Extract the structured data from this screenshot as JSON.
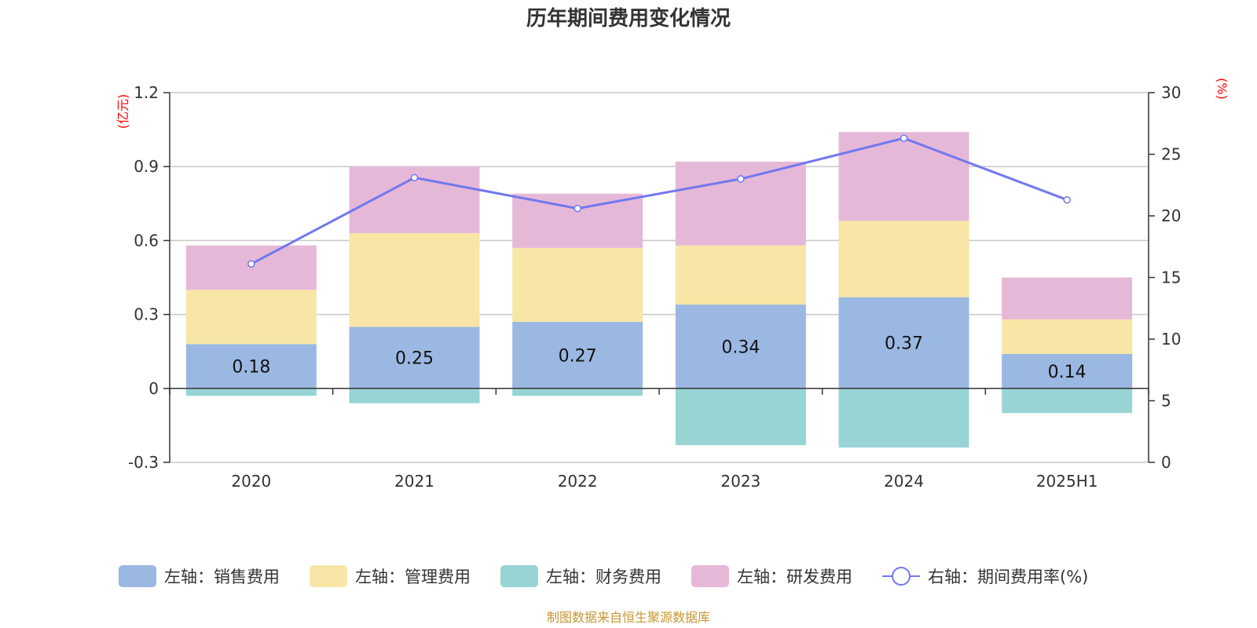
{
  "chart_data": {
    "type": "bar",
    "title": "历年期间费用变化情况",
    "categories": [
      "2020",
      "2021",
      "2022",
      "2023",
      "2024",
      "2025H1"
    ],
    "left_axis": {
      "unit": "(亿元)",
      "ticks": [
        "1.2",
        "0.9",
        "0.6",
        "0.3",
        "0",
        "-0.3"
      ],
      "ylim": [
        -0.3,
        1.2
      ]
    },
    "right_axis": {
      "unit": "(%)",
      "ticks": [
        "30",
        "25",
        "20",
        "15",
        "10",
        "5",
        "0"
      ],
      "ylim": [
        0,
        30
      ]
    },
    "series": [
      {
        "name": "左轴：销售费用",
        "type": "bar",
        "axis": "left",
        "color": "#9bb8e2",
        "values": [
          0.18,
          0.25,
          0.27,
          0.34,
          0.37,
          0.14
        ],
        "labels": [
          "0.18",
          "0.25",
          "0.27",
          "0.34",
          "0.37",
          "0.14"
        ]
      },
      {
        "name": "左轴：管理费用",
        "type": "bar",
        "axis": "left",
        "color": "#f7e6a6",
        "values": [
          0.22,
          0.38,
          0.3,
          0.24,
          0.31,
          0.14
        ]
      },
      {
        "name": "左轴：财务费用",
        "type": "bar",
        "axis": "left",
        "color": "#98d4d4",
        "values": [
          -0.03,
          -0.06,
          -0.03,
          -0.23,
          -0.24,
          -0.1
        ]
      },
      {
        "name": "左轴：研发费用",
        "type": "bar",
        "axis": "left",
        "color": "#e6b8d8",
        "values": [
          0.18,
          0.27,
          0.22,
          0.34,
          0.36,
          0.17
        ]
      },
      {
        "name": "右轴：期间费用率(%)",
        "type": "line",
        "axis": "right",
        "color": "#7278ee",
        "values": [
          16.1,
          23.1,
          20.6,
          23.0,
          26.3,
          21.3
        ]
      }
    ],
    "grid": true,
    "legend_position": "bottom"
  },
  "footer": {
    "source": "制图数据来自恒生聚源数据库"
  }
}
